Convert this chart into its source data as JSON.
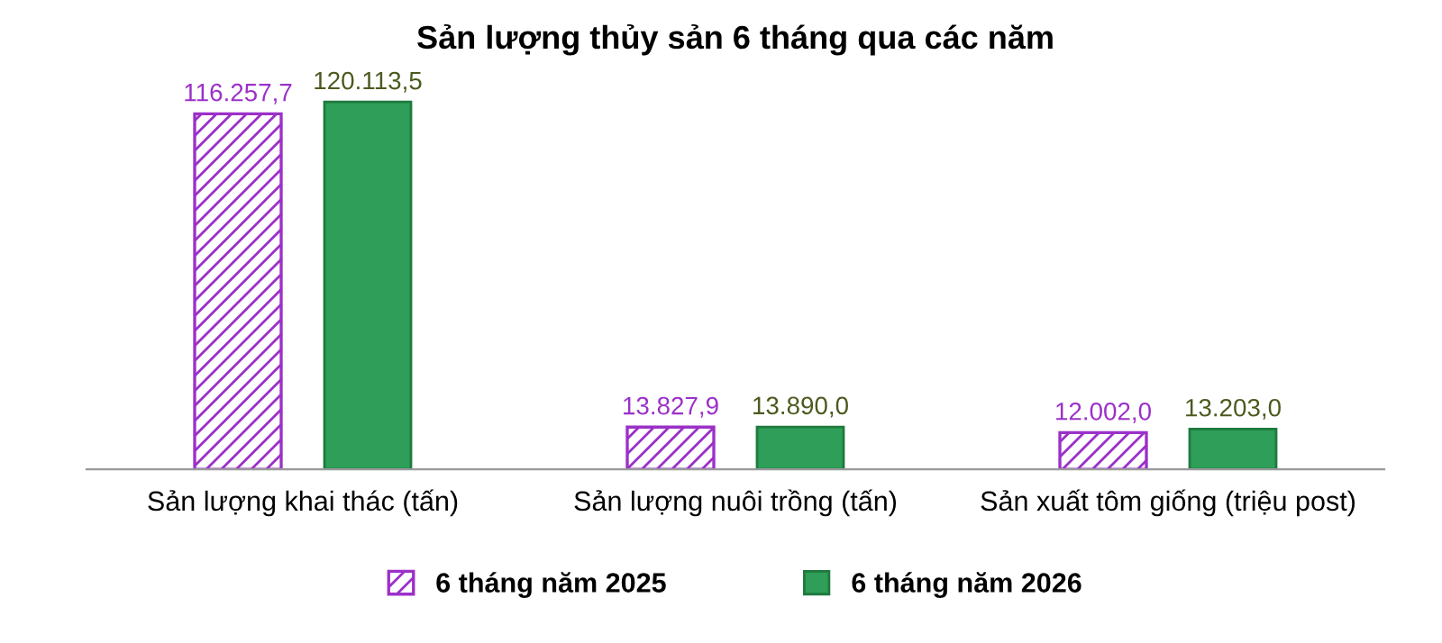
{
  "chart_data": {
    "type": "bar",
    "title": "Sản lượng thủy sản 6 tháng qua các năm",
    "categories": [
      "Sản lượng khai thác (tấn)",
      "Sản lượng nuôi trồng (tấn)",
      "Sản xuất tôm giống (triệu post)"
    ],
    "series": [
      {
        "name": "6 tháng năm 2025",
        "color": "#9b30c8",
        "values": [
          116257.7,
          13827.9,
          12002.0
        ],
        "value_labels": [
          "116.257,7",
          "13.827,9",
          "12.002,0"
        ]
      },
      {
        "name": "6 tháng năm 2026",
        "color": "#2e9e58",
        "values": [
          120113.5,
          13890.0,
          13203.0
        ],
        "value_labels": [
          "120.113,5",
          "13.890,0",
          "13.203,0"
        ]
      }
    ],
    "legend": "bottom"
  }
}
